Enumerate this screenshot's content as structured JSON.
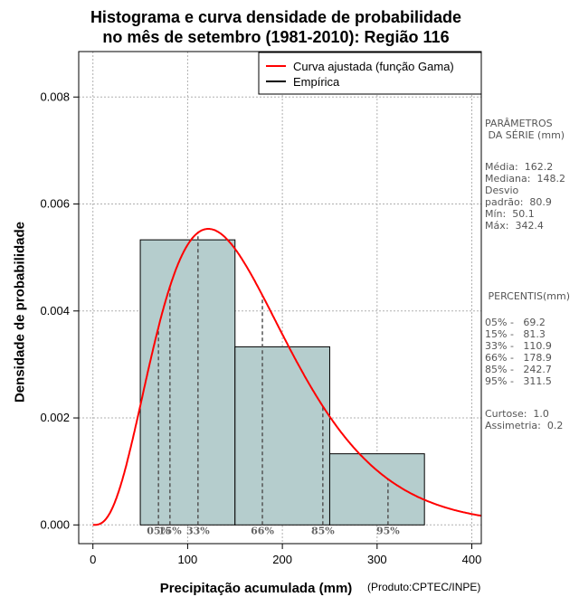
{
  "chart_data": {
    "type": "bar",
    "title_line1": "Histograma e curva densidade de probabilidade",
    "title_line2": "no mês de setembro (1981-2010): Região 116",
    "xlabel": "Precipitação acumulada (mm)",
    "ylabel": "Densidade de probabilidade",
    "credit": "(Produto:CPTEC/INPE)",
    "xlim": [
      -15,
      410
    ],
    "ylim": [
      -0.00035,
      0.00885
    ],
    "x_ticks": [
      0,
      100,
      200,
      300,
      400
    ],
    "x_tick_labels": [
      "0",
      "100",
      "200",
      "300",
      "400"
    ],
    "y_ticks": [
      0.0,
      0.002,
      0.004,
      0.006,
      0.008
    ],
    "y_tick_labels": [
      "0.000",
      "0.002",
      "0.004",
      "0.006",
      "0.008"
    ],
    "grid": true,
    "bins": [
      {
        "start": 50,
        "end": 150,
        "density": 0.00533
      },
      {
        "start": 150,
        "end": 250,
        "density": 0.00333
      },
      {
        "start": 250,
        "end": 350,
        "density": 0.00133
      }
    ],
    "gamma_mean": 162.2,
    "gamma_sd": 80.9,
    "bar_color": "#b5cdcd",
    "curve_color": "#ff0000",
    "legend": {
      "position": "top-right",
      "entries": [
        {
          "label": "Curva ajustada (função Gama)",
          "color": "#ff0000"
        },
        {
          "label": "Empírica",
          "color": "#000000"
        }
      ]
    },
    "percentiles": [
      {
        "label": "05%",
        "value": 69.2
      },
      {
        "label": "15%",
        "value": 81.3
      },
      {
        "label": "33%",
        "value": 110.9
      },
      {
        "label": "66%",
        "value": 178.9
      },
      {
        "label": "85%",
        "value": 242.7
      },
      {
        "label": "95%",
        "value": 311.5
      }
    ]
  },
  "side_panel": {
    "params_title": "PARÂMETROS\n DA SÉRIE (mm)",
    "params_text": "Média:  162.2\nMediana:  148.2\nDesvio\npadrão:  80.9\nMín:  50.1\nMáx:  342.4",
    "perc_title": " PERCENTIS(mm)",
    "perc_text": "05% -   69.2\n15% -   81.3\n33% -   110.9\n66% -   178.9\n85% -   242.7\n95% -   311.5",
    "stats_text": "Curtose:  1.0\nAssimetria:  0.2"
  }
}
